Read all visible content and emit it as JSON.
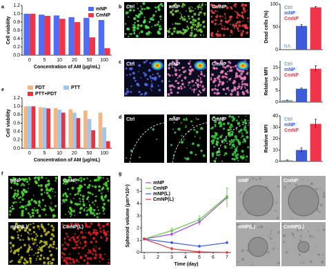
{
  "panel_labels": [
    "a",
    "b",
    "c",
    "d",
    "e",
    "f",
    "g"
  ],
  "images": {
    "b": [
      "Ctrl",
      "mNP",
      "CmNP"
    ],
    "c": [
      "Ctrl",
      "mNP",
      "CmNP"
    ],
    "d": [
      "Ctrl",
      "mNP",
      "CmNP"
    ],
    "f": [
      "mNP",
      "CmNP",
      "mNP(L)",
      "CmNP(L)"
    ],
    "g": [
      "mNP",
      "CmNP",
      "mNP(L)",
      "CmNP(L)"
    ]
  },
  "chart_data": [
    {
      "type": "bar",
      "ylabel": "Cell viability",
      "xlabel": "Concentration of AM (μg/mL)",
      "categories": [
        "0",
        "5",
        "10",
        "20",
        "50",
        "100"
      ],
      "ylim": [
        0,
        1.2
      ],
      "yticks": [
        {
          "value": 0,
          "label": "0.0"
        },
        {
          "value": 0.2,
          "label": "0.2"
        },
        {
          "value": 0.4,
          "label": "0.4"
        },
        {
          "value": 0.6,
          "label": "0.6"
        },
        {
          "value": 0.8,
          "label": "0.8"
        },
        {
          "value": 1,
          "label": "1.0"
        },
        {
          "value": 1.2,
          "label": "1.2"
        }
      ],
      "legend": "upper-right",
      "series": [
        {
          "name": "mNP",
          "color": "#4f6ef7",
          "values": [
            1.0,
            0.98,
            0.96,
            0.92,
            0.9,
            0.85
          ]
        },
        {
          "name": "CmNP",
          "color": "#f0354a",
          "values": [
            1.0,
            0.95,
            0.88,
            0.8,
            0.43,
            0.17
          ]
        }
      ]
    },
    {
      "type": "bar",
      "ylabel": "Dead cells (%)",
      "categories": [
        "Ctrl",
        "mNP",
        "CmNP"
      ],
      "values": [
        null,
        52,
        93
      ],
      "errors": [
        null,
        3,
        2
      ],
      "colors": [
        "#7a9cb0",
        "#3b5bdb",
        "#f0354a"
      ],
      "annotation": "NA",
      "ylim": [
        0,
        100
      ],
      "yticks": [
        0,
        50,
        100
      ],
      "legend": "upper-left"
    },
    {
      "type": "bar",
      "ylabel": "Relative MFI",
      "categories": [
        "Ctrl",
        "mNP",
        "CmNP"
      ],
      "values": [
        0.8,
        5.8,
        14.5
      ],
      "errors": [
        0.1,
        0.3,
        1.3
      ],
      "colors": [
        "#7a9cb0",
        "#3b5bdb",
        "#f0354a"
      ],
      "ylim": [
        0,
        18
      ],
      "yticks": [
        0,
        5,
        10,
        15
      ],
      "legend": "upper-left"
    },
    {
      "type": "bar",
      "ylabel": "Relative MFI",
      "categories": [
        "Ctrl",
        "mNP",
        "CmNP"
      ],
      "values": [
        1,
        10,
        33
      ],
      "errors": [
        0.3,
        2,
        4
      ],
      "colors": [
        "#7a9cb0",
        "#3b5bdb",
        "#f0354a"
      ],
      "ylim": [
        0,
        40
      ],
      "yticks": [
        0,
        10,
        20,
        30,
        40
      ],
      "legend": "upper-left"
    },
    {
      "type": "bar",
      "ylabel": "Cell viability",
      "xlabel": "Concentration of AM (μg/mL)",
      "categories": [
        "0",
        "5",
        "10",
        "20",
        "50",
        "100"
      ],
      "ylim": [
        0,
        1.2
      ],
      "yticks": [
        {
          "value": 0,
          "label": "0.0"
        },
        {
          "value": 0.2,
          "label": "0.2"
        },
        {
          "value": 0.4,
          "label": "0.4"
        },
        {
          "value": 0.6,
          "label": "0.6"
        },
        {
          "value": 0.8,
          "label": "0.8"
        },
        {
          "value": 1,
          "label": "1.0"
        },
        {
          "value": 1.2,
          "label": "1.2"
        }
      ],
      "legend": "top",
      "series": [
        {
          "name": "PDT",
          "color": "#f5b57e",
          "values": [
            1.0,
            0.98,
            0.96,
            0.93,
            0.9,
            0.85
          ]
        },
        {
          "name": "PTT",
          "color": "#9fc5f0",
          "values": [
            1.0,
            0.97,
            0.92,
            0.85,
            0.7,
            0.5
          ]
        },
        {
          "name": "PTT+PDT",
          "color": "#e8333f",
          "values": [
            1.0,
            0.95,
            0.85,
            0.72,
            0.43,
            0.17
          ]
        }
      ]
    },
    {
      "type": "line",
      "ylabel": "Spheroid volume (μm³×10⁵)",
      "xlabel": "Time (day)",
      "x": [
        1,
        3,
        5,
        7
      ],
      "xlim": [
        0.8,
        7.3
      ],
      "xticks": [
        1,
        2,
        3,
        4,
        5,
        6,
        7
      ],
      "ylim": [
        0,
        6
      ],
      "yticks": [
        0,
        1,
        2,
        3,
        4,
        5,
        6
      ],
      "legend": "upper-left",
      "series": [
        {
          "name": "mNP",
          "color": "#9b4fd8",
          "values": [
            1.1,
            1.5,
            2.5,
            4.5
          ],
          "errors": [
            0.1,
            0.2,
            0.3,
            0.8
          ]
        },
        {
          "name": "CmNP",
          "color": "#5ccc3c",
          "values": [
            1.1,
            1.8,
            2.7,
            4.6
          ],
          "errors": [
            0.1,
            0.2,
            0.3,
            0.7
          ]
        },
        {
          "name": "mNP(L)",
          "color": "#3a5ae0",
          "values": [
            1.1,
            0.8,
            0.5,
            0.8
          ],
          "errors": [
            0.1,
            0.1,
            0.1,
            0.1
          ]
        },
        {
          "name": "CmNP(L)",
          "color": "#e8333f",
          "values": [
            1.1,
            0.3,
            0.05,
            0.0
          ],
          "errors": [
            0.1,
            0.1,
            0.05,
            0.05
          ]
        }
      ]
    }
  ]
}
